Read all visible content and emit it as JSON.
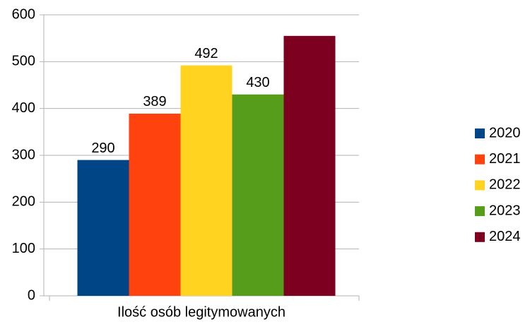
{
  "chart_data": {
    "type": "bar",
    "categories": [
      "Ilość osób legitymowanych"
    ],
    "series": [
      {
        "name": "2020",
        "color": "#004586",
        "values": [
          290
        ],
        "data_label": true
      },
      {
        "name": "2021",
        "color": "#ff420e",
        "values": [
          389
        ],
        "data_label": true
      },
      {
        "name": "2022",
        "color": "#ffd320",
        "values": [
          492
        ],
        "data_label": true
      },
      {
        "name": "2023",
        "color": "#579d1c",
        "values": [
          430
        ],
        "data_label": true
      },
      {
        "name": "2024",
        "color": "#7e0021",
        "values": [
          555
        ],
        "data_label": false
      }
    ],
    "ylim": [
      0,
      600
    ],
    "yticks": [
      0,
      100,
      200,
      300,
      400,
      500,
      600
    ],
    "grid": true,
    "legend": "right"
  }
}
